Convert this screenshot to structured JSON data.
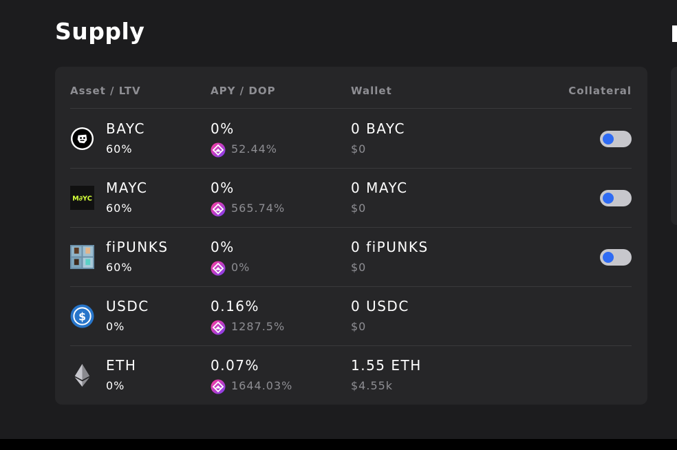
{
  "section": {
    "title": "Supply"
  },
  "table": {
    "headers": {
      "asset": "Asset / LTV",
      "apy": "APY / DOP",
      "wallet": "Wallet",
      "collateral": "Collateral"
    },
    "rows": [
      {
        "symbol": "BAYC",
        "ltv": "60%",
        "apy": "0%",
        "dop": "52.44%",
        "wallet": "0 BAYC",
        "usd": "$0",
        "collateral_toggle": true,
        "icon": "bayc-icon"
      },
      {
        "symbol": "MAYC",
        "ltv": "60%",
        "apy": "0%",
        "dop": "565.74%",
        "wallet": "0 MAYC",
        "usd": "$0",
        "collateral_toggle": true,
        "icon": "mayc-icon"
      },
      {
        "symbol": "fiPUNKS",
        "ltv": "60%",
        "apy": "0%",
        "dop": "0%",
        "wallet": "0 fiPUNKS",
        "usd": "$0",
        "collateral_toggle": true,
        "icon": "fipunks-icon"
      },
      {
        "symbol": "USDC",
        "ltv": "0%",
        "apy": "0.16%",
        "dop": "1287.5%",
        "wallet": "0 USDC",
        "usd": "$0",
        "collateral_toggle": false,
        "icon": "usdc-icon"
      },
      {
        "symbol": "ETH",
        "ltv": "0%",
        "apy": "0.07%",
        "dop": "1644.03%",
        "wallet": "1.55 ETH",
        "usd": "$4.55k",
        "collateral_toggle": false,
        "icon": "eth-icon"
      }
    ]
  },
  "colors": {
    "background": "#1c1c1e",
    "card": "#262628",
    "muted_text": "#8e8e93",
    "toggle_track": "#c7c7cc",
    "toggle_knob": "#2f6bf3",
    "usdc_blue": "#2775ca"
  }
}
